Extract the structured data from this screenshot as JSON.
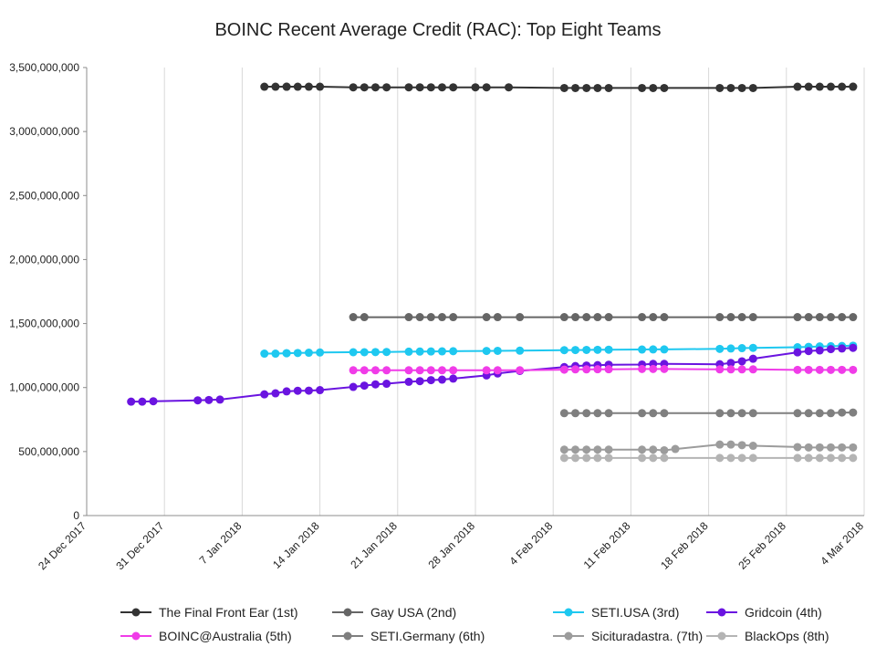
{
  "chart_data": {
    "type": "line",
    "title": "BOINC Recent Average Credit (RAC): Top Eight Teams",
    "xlabel": "",
    "ylabel": "",
    "x_tick_labels": [
      "24 Dec 2017",
      "31 Dec 2017",
      "7 Jan 2018",
      "14 Jan 2018",
      "21 Jan 2018",
      "28 Jan 2018",
      "4 Feb 2018",
      "11 Feb 2018",
      "18 Feb 2018",
      "25 Feb 2018",
      "4 Mar 2018"
    ],
    "y_tick_labels": [
      "0",
      "500,000,000",
      "1,000,000,000",
      "1,500,000,000",
      "2,000,000,000",
      "2,500,000,000",
      "3,000,000,000",
      "3,500,000,000"
    ],
    "xlim": [
      "2017-12-24",
      "2018-03-04"
    ],
    "ylim": [
      0,
      3500000000
    ],
    "grid": "vertical",
    "legend_position": "bottom",
    "series": [
      {
        "name": "The Final Front Ear (1st)",
        "color": "#333333",
        "x": [
          "2018-01-09",
          "2018-01-10",
          "2018-01-11",
          "2018-01-11",
          "2018-01-12",
          "2018-01-13",
          "2018-01-14",
          "2018-01-17",
          "2018-01-18",
          "2018-01-19",
          "2018-01-20",
          "2018-01-22",
          "2018-01-23",
          "2018-01-24",
          "2018-01-25",
          "2018-01-26",
          "2018-01-28",
          "2018-01-29",
          "2018-01-31",
          "2018-02-05",
          "2018-02-06",
          "2018-02-07",
          "2018-02-08",
          "2018-02-09",
          "2018-02-12",
          "2018-02-13",
          "2018-02-14",
          "2018-02-19",
          "2018-02-20",
          "2018-02-21",
          "2018-02-22",
          "2018-02-26",
          "2018-02-27",
          "2018-02-28",
          "2018-03-01",
          "2018-03-02",
          "2018-03-03",
          "2018-03-03"
        ],
        "y": [
          3350000000,
          3350000000,
          3350000000,
          3350000000,
          3350000000,
          3350000000,
          3350000000,
          3345000000,
          3345000000,
          3345000000,
          3345000000,
          3345000000,
          3345000000,
          3345000000,
          3345000000,
          3345000000,
          3345000000,
          3345000000,
          3345000000,
          3340000000,
          3340000000,
          3340000000,
          3340000000,
          3340000000,
          3340000000,
          3340000000,
          3340000000,
          3340000000,
          3340000000,
          3340000000,
          3340000000,
          3350000000,
          3350000000,
          3350000000,
          3350000000,
          3350000000,
          3350000000,
          3350000000
        ]
      },
      {
        "name": "Gay USA (2nd)",
        "color": "#666666",
        "x": [
          "2018-01-17",
          "2018-01-18",
          "2018-01-22",
          "2018-01-23",
          "2018-01-24",
          "2018-01-25",
          "2018-01-26",
          "2018-01-29",
          "2018-01-30",
          "2018-02-01",
          "2018-02-05",
          "2018-02-06",
          "2018-02-07",
          "2018-02-08",
          "2018-02-09",
          "2018-02-12",
          "2018-02-13",
          "2018-02-14",
          "2018-02-19",
          "2018-02-20",
          "2018-02-21",
          "2018-02-22",
          "2018-02-26",
          "2018-02-27",
          "2018-02-28",
          "2018-03-01",
          "2018-03-02",
          "2018-03-03"
        ],
        "y": [
          1550000000,
          1550000000,
          1550000000,
          1550000000,
          1550000000,
          1550000000,
          1550000000,
          1550000000,
          1550000000,
          1550000000,
          1550000000,
          1550000000,
          1550000000,
          1550000000,
          1550000000,
          1550000000,
          1550000000,
          1550000000,
          1550000000,
          1550000000,
          1550000000,
          1550000000,
          1550000000,
          1550000000,
          1550000000,
          1550000000,
          1550000000,
          1550000000
        ]
      },
      {
        "name": "SETI.USA (3rd)",
        "color": "#1ec8f0",
        "x": [
          "2018-01-09",
          "2018-01-10",
          "2018-01-11",
          "2018-01-11",
          "2018-01-12",
          "2018-01-13",
          "2018-01-14",
          "2018-01-17",
          "2018-01-18",
          "2018-01-19",
          "2018-01-20",
          "2018-01-22",
          "2018-01-23",
          "2018-01-24",
          "2018-01-25",
          "2018-01-26",
          "2018-01-29",
          "2018-01-30",
          "2018-02-01",
          "2018-02-05",
          "2018-02-06",
          "2018-02-07",
          "2018-02-08",
          "2018-02-09",
          "2018-02-12",
          "2018-02-13",
          "2018-02-14",
          "2018-02-19",
          "2018-02-20",
          "2018-02-21",
          "2018-02-22",
          "2018-02-26",
          "2018-02-27",
          "2018-02-28",
          "2018-03-01",
          "2018-03-02",
          "2018-03-03"
        ],
        "y": [
          1265000000,
          1265000000,
          1268000000,
          1268000000,
          1270000000,
          1272000000,
          1274000000,
          1276000000,
          1276000000,
          1277000000,
          1278000000,
          1280000000,
          1281000000,
          1282000000,
          1283000000,
          1284000000,
          1286000000,
          1287000000,
          1288000000,
          1292000000,
          1293000000,
          1294000000,
          1295000000,
          1296000000,
          1297000000,
          1298000000,
          1298000000,
          1302000000,
          1305000000,
          1308000000,
          1310000000,
          1315000000,
          1318000000,
          1321000000,
          1323000000,
          1325000000,
          1327000000
        ]
      },
      {
        "name": "Gridcoin (4th)",
        "color": "#6a14e0",
        "x": [
          "2017-12-28",
          "2017-12-29",
          "2017-12-30",
          "2018-01-03",
          "2018-01-04",
          "2018-01-05",
          "2018-01-09",
          "2018-01-10",
          "2018-01-11",
          "2018-01-12",
          "2018-01-13",
          "2018-01-14",
          "2018-01-17",
          "2018-01-18",
          "2018-01-19",
          "2018-01-20",
          "2018-01-22",
          "2018-01-23",
          "2018-01-24",
          "2018-01-25",
          "2018-01-26",
          "2018-01-29",
          "2018-01-30",
          "2018-02-01",
          "2018-02-05",
          "2018-02-06",
          "2018-02-07",
          "2018-02-08",
          "2018-02-09",
          "2018-02-12",
          "2018-02-13",
          "2018-02-14",
          "2018-02-19",
          "2018-02-20",
          "2018-02-21",
          "2018-02-22",
          "2018-02-26",
          "2018-02-27",
          "2018-02-28",
          "2018-03-01",
          "2018-03-02",
          "2018-03-03"
        ],
        "y": [
          890000000,
          890000000,
          893000000,
          900000000,
          903000000,
          906000000,
          947000000,
          955000000,
          970000000,
          975000000,
          976000000,
          980000000,
          1005000000,
          1015000000,
          1025000000,
          1030000000,
          1045000000,
          1050000000,
          1058000000,
          1062000000,
          1070000000,
          1095000000,
          1110000000,
          1130000000,
          1160000000,
          1168000000,
          1172000000,
          1175000000,
          1178000000,
          1180000000,
          1185000000,
          1185000000,
          1182000000,
          1192000000,
          1205000000,
          1225000000,
          1275000000,
          1285000000,
          1290000000,
          1300000000,
          1305000000,
          1310000000
        ]
      },
      {
        "name": "BOINC@Australia (5th)",
        "color": "#f03ce8",
        "x": [
          "2018-01-17",
          "2018-01-18",
          "2018-01-19",
          "2018-01-20",
          "2018-01-22",
          "2018-01-23",
          "2018-01-24",
          "2018-01-25",
          "2018-01-26",
          "2018-01-29",
          "2018-01-30",
          "2018-02-01",
          "2018-02-05",
          "2018-02-06",
          "2018-02-07",
          "2018-02-08",
          "2018-02-09",
          "2018-02-12",
          "2018-02-13",
          "2018-02-14",
          "2018-02-19",
          "2018-02-20",
          "2018-02-21",
          "2018-02-22",
          "2018-02-26",
          "2018-02-27",
          "2018-02-28",
          "2018-03-01",
          "2018-03-02",
          "2018-03-03"
        ],
        "y": [
          1135000000,
          1135000000,
          1135000000,
          1135000000,
          1135000000,
          1135000000,
          1135000000,
          1135000000,
          1135000000,
          1135000000,
          1135000000,
          1135000000,
          1140000000,
          1142000000,
          1142000000,
          1143000000,
          1143000000,
          1145000000,
          1145000000,
          1145000000,
          1142000000,
          1142000000,
          1142000000,
          1142000000,
          1138000000,
          1138000000,
          1138000000,
          1138000000,
          1138000000,
          1138000000
        ]
      },
      {
        "name": "SETI.Germany (6th)",
        "color": "#7f7f7f",
        "x": [
          "2018-02-05",
          "2018-02-06",
          "2018-02-07",
          "2018-02-08",
          "2018-02-09",
          "2018-02-12",
          "2018-02-13",
          "2018-02-14",
          "2018-02-19",
          "2018-02-20",
          "2018-02-21",
          "2018-02-22",
          "2018-02-26",
          "2018-02-27",
          "2018-02-28",
          "2018-03-01",
          "2018-03-02",
          "2018-03-03"
        ],
        "y": [
          800000000,
          800000000,
          800000000,
          800000000,
          800000000,
          800000000,
          800000000,
          800000000,
          800000000,
          800000000,
          800000000,
          800000000,
          800000000,
          800000000,
          800000000,
          800000000,
          805000000,
          805000000
        ]
      },
      {
        "name": "Sicituradastra. (7th)",
        "color": "#9c9c9c",
        "x": [
          "2018-02-05",
          "2018-02-06",
          "2018-02-07",
          "2018-02-08",
          "2018-02-09",
          "2018-02-12",
          "2018-02-13",
          "2018-02-14",
          "2018-02-15",
          "2018-02-19",
          "2018-02-20",
          "2018-02-21",
          "2018-02-22",
          "2018-02-26",
          "2018-02-27",
          "2018-02-28",
          "2018-03-01",
          "2018-03-02",
          "2018-03-03"
        ],
        "y": [
          515000000,
          515000000,
          515000000,
          515000000,
          515000000,
          515000000,
          515000000,
          510000000,
          520000000,
          555000000,
          555000000,
          550000000,
          545000000,
          535000000,
          532000000,
          532000000,
          532000000,
          532000000,
          532000000
        ]
      },
      {
        "name": "BlackOps (8th)",
        "color": "#b4b4b4",
        "x": [
          "2018-02-05",
          "2018-02-06",
          "2018-02-07",
          "2018-02-08",
          "2018-02-09",
          "2018-02-12",
          "2018-02-13",
          "2018-02-14",
          "2018-02-19",
          "2018-02-20",
          "2018-02-21",
          "2018-02-22",
          "2018-02-26",
          "2018-02-27",
          "2018-02-28",
          "2018-03-01",
          "2018-03-02",
          "2018-03-03"
        ],
        "y": [
          450000000,
          450000000,
          450000000,
          450000000,
          450000000,
          450000000,
          450000000,
          450000000,
          450000000,
          450000000,
          450000000,
          450000000,
          450000000,
          450000000,
          450000000,
          450000000,
          450000000,
          450000000
        ]
      }
    ]
  }
}
